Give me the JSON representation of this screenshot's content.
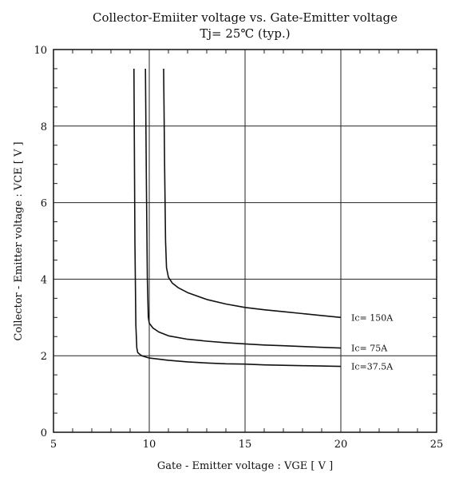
{
  "chart_data": {
    "type": "line",
    "title": "Collector-Emiiter voltage  vs. Gate-Emitter voltage",
    "subtitle": "Tj= 25℃  (typ.)",
    "xlabel": "Gate - Emitter voltage  :  VGE  [ V ]",
    "ylabel": "Collector - Emitter voltage  :  VCE  [ V ]",
    "xlim": [
      5,
      25
    ],
    "ylim": [
      0,
      10
    ],
    "xticks": [
      "5",
      "10",
      "15",
      "20",
      "25"
    ],
    "yticks": [
      "0",
      "2",
      "4",
      "6",
      "8",
      "10"
    ],
    "grid": true,
    "series": [
      {
        "name": "Ic= 150A",
        "x": [
          10.75,
          10.8,
          10.85,
          10.9,
          11.0,
          11.2,
          11.5,
          12.0,
          13.0,
          14.0,
          15.0,
          16.0,
          17.0,
          18.0,
          19.0,
          20.0
        ],
        "y": [
          9.5,
          7.0,
          5.0,
          4.3,
          4.05,
          3.9,
          3.78,
          3.65,
          3.47,
          3.35,
          3.26,
          3.2,
          3.15,
          3.1,
          3.05,
          3.0
        ]
      },
      {
        "name": "Ic= 75A",
        "x": [
          9.8,
          9.85,
          9.9,
          9.95,
          10.0,
          10.2,
          10.5,
          11.0,
          12.0,
          13.0,
          14.0,
          15.0,
          16.0,
          17.0,
          18.0,
          19.0,
          20.0
        ],
        "y": [
          9.5,
          6.5,
          4.0,
          3.0,
          2.85,
          2.72,
          2.62,
          2.52,
          2.43,
          2.38,
          2.34,
          2.31,
          2.28,
          2.26,
          2.24,
          2.22,
          2.2
        ]
      },
      {
        "name": "Ic=37.5A",
        "x": [
          9.2,
          9.25,
          9.3,
          9.35,
          9.4,
          9.6,
          10.0,
          11.0,
          12.0,
          13.0,
          14.0,
          15.0,
          16.0,
          17.0,
          18.0,
          19.0,
          20.0
        ],
        "y": [
          9.5,
          5.0,
          2.8,
          2.2,
          2.08,
          2.0,
          1.94,
          1.88,
          1.84,
          1.81,
          1.79,
          1.78,
          1.76,
          1.75,
          1.74,
          1.73,
          1.72
        ]
      }
    ]
  }
}
